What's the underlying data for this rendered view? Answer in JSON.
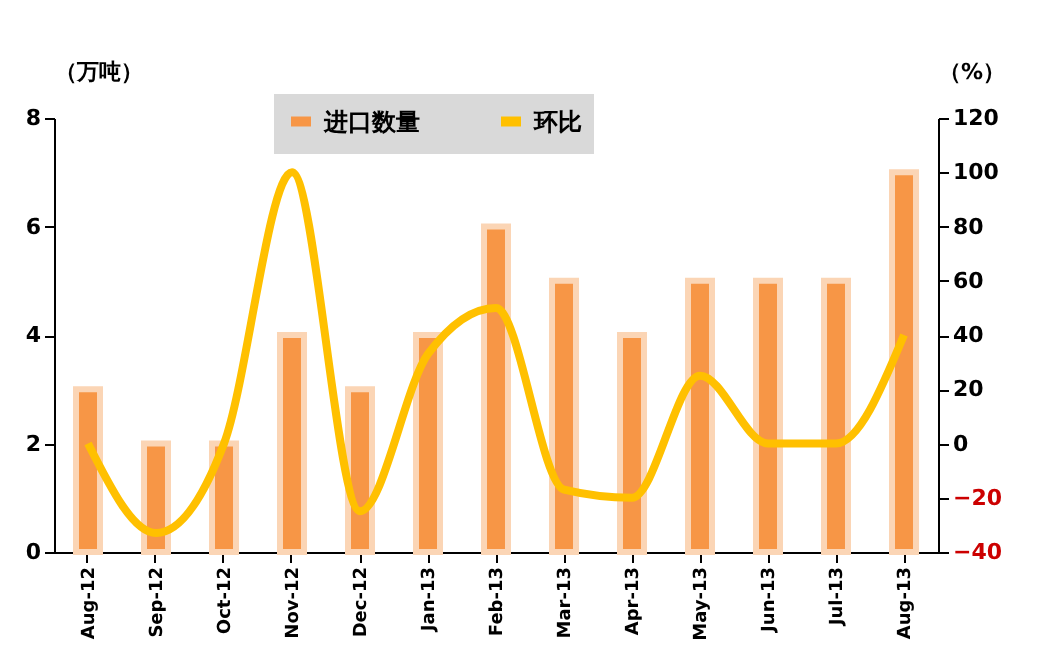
{
  "chart_data": {
    "type": "bar",
    "ylabel": "（万吨）",
    "y2label": "（%）",
    "categories": [
      "Aug-12",
      "Sep-12",
      "Oct-12",
      "Nov-12",
      "Dec-12",
      "Jan-13",
      "Feb-13",
      "Mar-13",
      "Apr-13",
      "May-13",
      "Jun-13",
      "Jul-13",
      "Aug-13"
    ],
    "series": [
      {
        "name": "进口数量",
        "color": "#f79646",
        "values": [
          3,
          2,
          2,
          4,
          3,
          4,
          6,
          5,
          4,
          5,
          5,
          5,
          7
        ]
      },
      {
        "name": "环比",
        "type": "line",
        "axis": "y2",
        "color": "#ffc000",
        "values": [
          0,
          -33,
          0,
          100,
          -25,
          33,
          50,
          -17,
          -20,
          25,
          0,
          0,
          40
        ]
      }
    ],
    "ylim": [
      0,
      8
    ],
    "yticks": [
      0,
      2,
      4,
      6,
      8
    ],
    "y2lim": [
      -40,
      120
    ],
    "y2ticks": [
      -40,
      -20,
      0,
      20,
      40,
      60,
      80,
      100,
      120
    ],
    "grid": false,
    "legend": "top",
    "marker": "none",
    "line_style": "solid"
  }
}
